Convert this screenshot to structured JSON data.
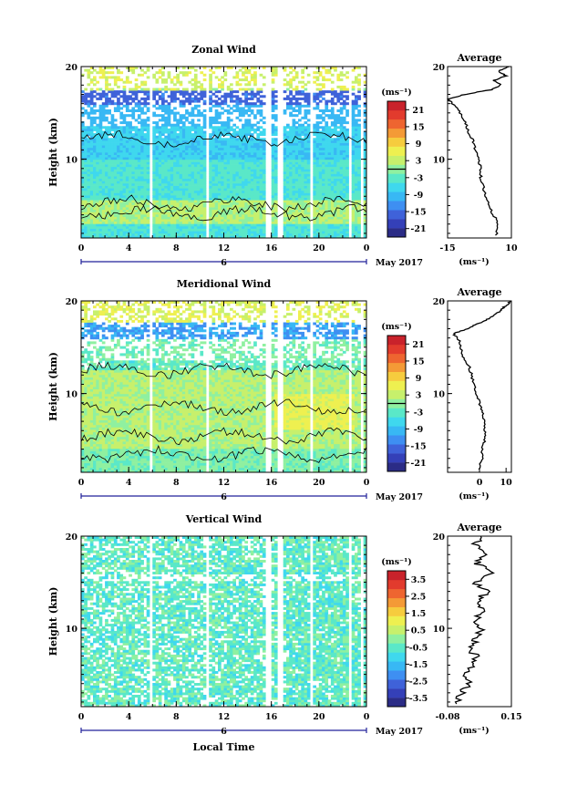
{
  "figure": {
    "month_label": "May 2017",
    "xlabel": "Local Time",
    "date_label": "6",
    "avg_title": "Average",
    "ylabel": "Height (km)",
    "unit": "(ms⁻¹)"
  },
  "chart_data": [
    {
      "type": "heatmap",
      "title": "Zonal Wind",
      "xlabel": "Local Time",
      "ylabel": "Height (km)",
      "xlim": [
        0,
        24
      ],
      "ylim": [
        1.5,
        20
      ],
      "xticks": [
        "0",
        "4",
        "8",
        "12",
        "16",
        "20",
        "0"
      ],
      "yticks": [
        "10",
        "20"
      ],
      "colorbar": {
        "unit": "(ms⁻¹)",
        "range": [
          -24,
          24
        ],
        "ticks": [
          "21",
          "15",
          "9",
          "3",
          "-3",
          "-9",
          "-15",
          "-21"
        ]
      },
      "average_profile": {
        "title": "Average",
        "xlabel": "(ms⁻¹)",
        "xlim": [
          -15,
          10
        ],
        "xticks": [
          "-15",
          "10"
        ],
        "height": [
          1.8,
          3,
          4,
          5,
          6,
          7,
          8,
          9,
          10,
          11,
          12,
          13,
          14,
          15,
          16,
          16.5,
          17,
          17.5,
          18,
          18.5,
          19,
          19.5,
          20
        ],
        "values": [
          4,
          5,
          3,
          1,
          0,
          -1,
          -2,
          -2,
          -3,
          -4,
          -5,
          -7,
          -8,
          -10,
          -13,
          -15,
          -8,
          2,
          6,
          3,
          8,
          5,
          9
        ]
      }
    },
    {
      "type": "heatmap",
      "title": "Meridional Wind",
      "xlabel": "Local Time",
      "ylabel": "Height (km)",
      "xlim": [
        0,
        24
      ],
      "ylim": [
        1.5,
        20
      ],
      "xticks": [
        "0",
        "4",
        "8",
        "12",
        "16",
        "20",
        "0"
      ],
      "yticks": [
        "10",
        "20"
      ],
      "colorbar": {
        "unit": "(ms⁻¹)",
        "range": [
          -24,
          24
        ],
        "ticks": [
          "21",
          "15",
          "9",
          "3",
          "-3",
          "-9",
          "-15",
          "-21"
        ]
      },
      "average_profile": {
        "title": "Average",
        "xlabel": "(ms⁻¹)",
        "xlim": [
          -12,
          12
        ],
        "xticks": [
          "0",
          "10"
        ],
        "height": [
          1.8,
          3,
          4,
          5,
          6,
          7,
          8,
          9,
          10,
          11,
          12,
          13,
          14,
          15,
          16,
          16.5,
          17,
          17.5,
          18,
          18.5,
          19,
          19.5,
          20
        ],
        "values": [
          0,
          1,
          1,
          2,
          2,
          2,
          1,
          0,
          -1,
          -2,
          -3,
          -4,
          -6,
          -7,
          -8,
          -10,
          -4,
          -1,
          3,
          6,
          8,
          10,
          12
        ]
      }
    },
    {
      "type": "heatmap",
      "title": "Vertical Wind",
      "xlabel": "Local Time",
      "ylabel": "Height (km)",
      "xlim": [
        0,
        24
      ],
      "ylim": [
        1.5,
        20
      ],
      "xticks": [
        "0",
        "4",
        "8",
        "12",
        "16",
        "20",
        "0"
      ],
      "yticks": [
        "10",
        "20"
      ],
      "colorbar": {
        "unit": "(ms⁻¹)",
        "range": [
          -4,
          4
        ],
        "ticks": [
          "3.5",
          "2.5",
          "1.5",
          "0.5",
          "-0.5",
          "-1.5",
          "-2.5",
          "-3.5"
        ]
      },
      "average_profile": {
        "title": "Average",
        "xlabel": "(ms⁻¹)",
        "xlim": [
          -0.08,
          0.15
        ],
        "xticks": [
          "-0.08",
          "0.15"
        ],
        "height": [
          1.8,
          3,
          4,
          5,
          6,
          7,
          8,
          9,
          10,
          11,
          12,
          13,
          14,
          15,
          16,
          17,
          18,
          19,
          20
        ],
        "values": [
          -0.04,
          -0.03,
          0.0,
          -0.02,
          0.01,
          0.02,
          0.0,
          0.03,
          0.04,
          0.02,
          0.05,
          0.03,
          0.06,
          0.02,
          0.07,
          0.03,
          0.05,
          0.02,
          0.04
        ]
      }
    }
  ]
}
